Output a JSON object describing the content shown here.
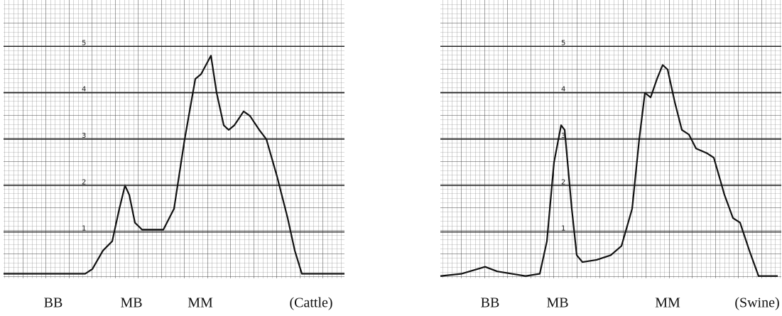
{
  "chart_data": [
    {
      "type": "line",
      "color": "#111111",
      "grid": true,
      "annotations": [
        "BB",
        "MB",
        "MM",
        "(Cattle)"
      ],
      "xlim": [
        0,
        480
      ],
      "ylim": [
        0,
        6
      ],
      "yticks": [
        1,
        2,
        3,
        4,
        5
      ],
      "x": [
        0,
        115,
        125,
        140,
        153,
        163,
        171,
        177,
        185,
        195,
        225,
        240,
        255,
        270,
        278,
        285,
        292,
        300,
        310,
        317,
        325,
        338,
        347,
        360,
        370,
        385,
        400,
        410,
        420,
        480
      ],
      "values": [
        0.1,
        0.1,
        0.2,
        0.6,
        0.8,
        1.5,
        2.0,
        1.8,
        1.2,
        1.05,
        1.05,
        1.5,
        3.0,
        4.3,
        4.4,
        4.6,
        4.8,
        4.0,
        3.3,
        3.2,
        3.3,
        3.6,
        3.5,
        3.2,
        3.0,
        2.2,
        1.3,
        0.6,
        0.1,
        0.1
      ]
    },
    {
      "type": "line",
      "color": "#111111",
      "grid": true,
      "annotations": [
        "BB",
        "MB",
        "MM",
        "(Swine)"
      ],
      "xlim": [
        0,
        480
      ],
      "ylim": [
        0,
        6
      ],
      "yticks": [
        1,
        2,
        3,
        4,
        5
      ],
      "x": [
        0,
        30,
        63,
        80,
        120,
        140,
        150,
        160,
        170,
        175,
        185,
        192,
        200,
        220,
        240,
        255,
        270,
        280,
        288,
        296,
        305,
        313,
        320,
        330,
        340,
        350,
        360,
        375,
        385,
        400,
        412,
        422,
        435,
        448,
        475
      ],
      "values": [
        0.05,
        0.1,
        0.25,
        0.15,
        0.05,
        0.1,
        0.8,
        2.5,
        3.3,
        3.2,
        1.5,
        0.5,
        0.35,
        0.4,
        0.5,
        0.7,
        1.5,
        3.0,
        4.0,
        3.9,
        4.3,
        4.6,
        4.5,
        3.8,
        3.2,
        3.1,
        2.8,
        2.7,
        2.6,
        1.8,
        1.3,
        1.2,
        0.6,
        0.05,
        0.05
      ]
    }
  ]
}
